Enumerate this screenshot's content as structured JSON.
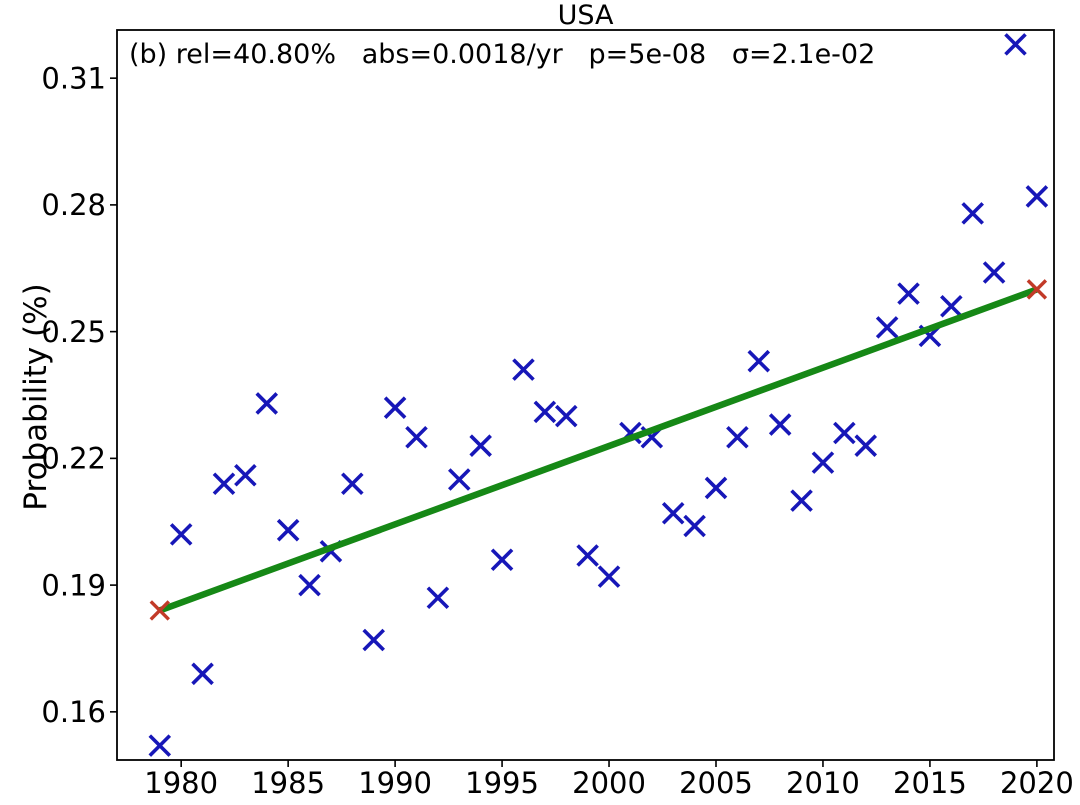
{
  "figure": {
    "title": "USA",
    "annotation_text": "(b) rel=40.80%   abs=0.0018/yr   p=5e-08   σ=2.1e-02",
    "y_axis_label": "Probability (%)"
  },
  "chart_data": {
    "type": "scatter",
    "title": "USA",
    "xlabel": "",
    "ylabel": "Probability (%)",
    "annotation": {
      "panel_label": "(b)",
      "rel": "40.80%",
      "abs": "0.0018/yr",
      "p": "5e-08",
      "sigma": "2.1e-02"
    },
    "marker": "x",
    "x": [
      1979,
      1980,
      1981,
      1982,
      1983,
      1984,
      1985,
      1986,
      1987,
      1988,
      1989,
      1990,
      1991,
      1992,
      1993,
      1994,
      1995,
      1996,
      1997,
      1998,
      1999,
      2000,
      2001,
      2002,
      2003,
      2004,
      2005,
      2006,
      2007,
      2008,
      2009,
      2010,
      2011,
      2012,
      2013,
      2014,
      2015,
      2016,
      2017,
      2018,
      2019,
      2020
    ],
    "y": [
      0.152,
      0.202,
      0.169,
      0.214,
      0.216,
      0.233,
      0.203,
      0.19,
      0.198,
      0.214,
      0.177,
      0.232,
      0.225,
      0.187,
      0.215,
      0.223,
      0.196,
      0.241,
      0.231,
      0.23,
      0.197,
      0.192,
      0.226,
      0.225,
      0.207,
      0.204,
      0.213,
      0.225,
      0.243,
      0.228,
      0.21,
      0.219,
      0.226,
      0.223,
      0.251,
      0.259,
      0.249,
      0.256,
      0.278,
      0.264,
      0.318,
      0.282
    ],
    "trend_line": {
      "x": [
        1979,
        2020
      ],
      "y": [
        0.184,
        0.26
      ],
      "endpoint_marker": "x"
    },
    "xlim": [
      1977,
      2020.8
    ],
    "ylim": [
      0.1486,
      0.3214
    ],
    "xticks": [
      1980,
      1985,
      1990,
      1995,
      2000,
      2005,
      2010,
      2015,
      2020
    ],
    "yticks": [
      0.16,
      0.19,
      0.22,
      0.25,
      0.28,
      0.31
    ],
    "grid": false,
    "legend": "none",
    "colors": {
      "points": "#1717b8",
      "trend": "#168816",
      "trend_endpoints": "#c23a28",
      "axes": "#000000",
      "text": "#000000",
      "background": "#ffffff"
    }
  }
}
